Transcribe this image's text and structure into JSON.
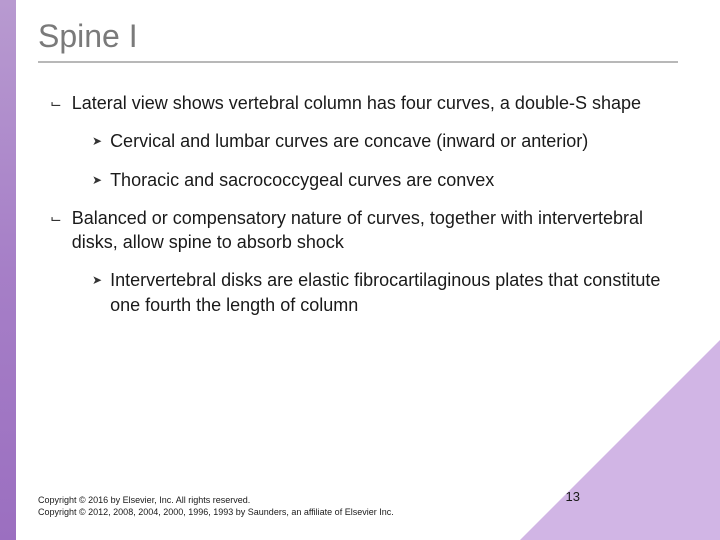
{
  "title": "Spine I",
  "bullets": [
    {
      "level": 1,
      "text": "Lateral view shows vertebral column has four curves, a double-S shape"
    },
    {
      "level": 2,
      "text": "Cervical and lumbar curves are concave (inward or anterior)"
    },
    {
      "level": 2,
      "text": "Thoracic and sacrococcygeal curves are convex"
    },
    {
      "level": 1,
      "text": "Balanced or compensatory nature of curves, together with intervertebral disks, allow spine to absorb shock"
    },
    {
      "level": 2,
      "text": "Intervertebral disks are elastic fibrocartilaginous plates that constitute one fourth the length of column"
    }
  ],
  "copyright_line1": "Copyright © 2016 by Elsevier, Inc. All rights reserved.",
  "copyright_line2": "Copyright © 2012, 2008, 2004, 2000, 1996, 1993 by Saunders, an affiliate of Elsevier Inc.",
  "page_number": "13",
  "colors": {
    "accent_bar_top": "#b89ad0",
    "accent_bar_bottom": "#9b6fc0",
    "triangle": "#c9a8e0",
    "title_color": "#7a7a7a",
    "underline": "#b8b8b8",
    "body_text": "#1a1a1a",
    "background": "#ffffff"
  },
  "markers": {
    "level1": "✓",
    "level2": "➤"
  }
}
